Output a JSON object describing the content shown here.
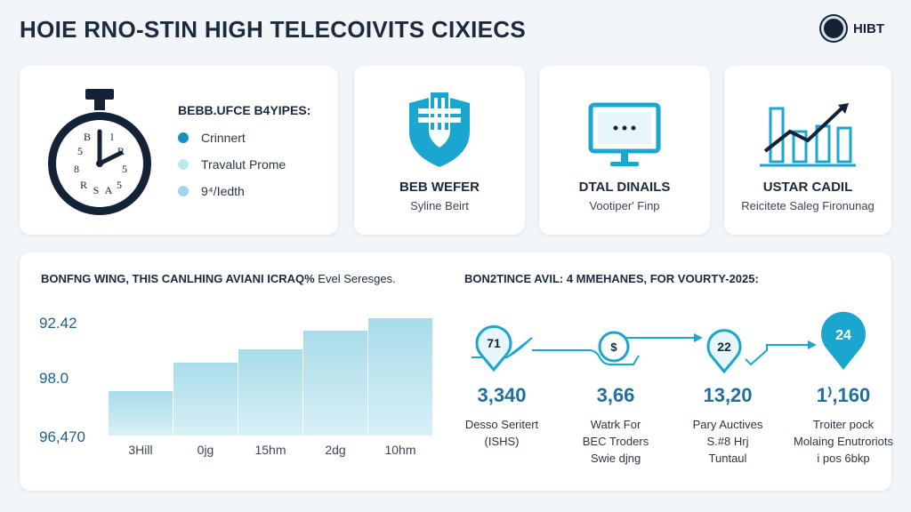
{
  "header": {
    "title": "HOIE RNO-STIN HIGH TELECOIVITS CIXIECS",
    "brand": "HIBT"
  },
  "card_clock": {
    "list_title": "BEBB.UFCE B4YIPES:",
    "items": [
      {
        "label": "Crinnert",
        "color": "#1b8fc0"
      },
      {
        "label": "Travalut Prome",
        "color": "#bfe6f2"
      },
      {
        "label": "9⁴/Iedth",
        "color": "#9cd9ea"
      }
    ],
    "clock_numerals": [
      "B",
      "l",
      "5",
      "R",
      "8",
      "5",
      "R",
      "5",
      "S",
      "A"
    ]
  },
  "card_shield": {
    "title": "BEB WEFER",
    "subtitle": "Syline Beirt",
    "icon": "shield-icon"
  },
  "card_monitor": {
    "title": "DTAL DINAILS",
    "subtitle": "Vootiper' Finp",
    "icon": "monitor-icon"
  },
  "card_growth": {
    "title": "USTAR CADIL",
    "subtitle": "Reicitete Saleg Fironunag",
    "icon": "growth-chart-icon"
  },
  "left_section": {
    "title_bold": "BONFNG WING, THIS CANLHING AVIANI ICRAQ%",
    "title_lite": "Evel Seresges.",
    "y_ticks": [
      "92.42",
      "98.0",
      "96,470"
    ]
  },
  "chart_data": {
    "type": "bar",
    "categories": [
      "3Hill",
      "0jg",
      "15hm",
      "2dg",
      "10hm"
    ],
    "values": [
      52,
      85,
      100,
      122,
      137
    ],
    "ylim": [
      0,
      145
    ],
    "color": "#a8dcea"
  },
  "right_section": {
    "title": "BON2TINCE AVIL: 4 MMEHANES, FOR VOURTY-2025:",
    "steps": [
      {
        "pin": "71",
        "value": "3,340",
        "label_lines": [
          "Desso Seritert",
          "(ISHS)"
        ]
      },
      {
        "pin": "$",
        "value": "3,66",
        "label_lines": [
          "Watrk For",
          "BEC Troders",
          "Swie djng"
        ]
      },
      {
        "pin": "22",
        "value": "13,20",
        "label_lines": [
          "Pary Auctives",
          "S.#8 Hrj",
          "Tuntaul"
        ]
      },
      {
        "pin": "24",
        "value": "1⁾,160",
        "label_lines": [
          "Troiter pock",
          "Molaing Enutroriots",
          "i pos 6bkp"
        ]
      }
    ]
  }
}
